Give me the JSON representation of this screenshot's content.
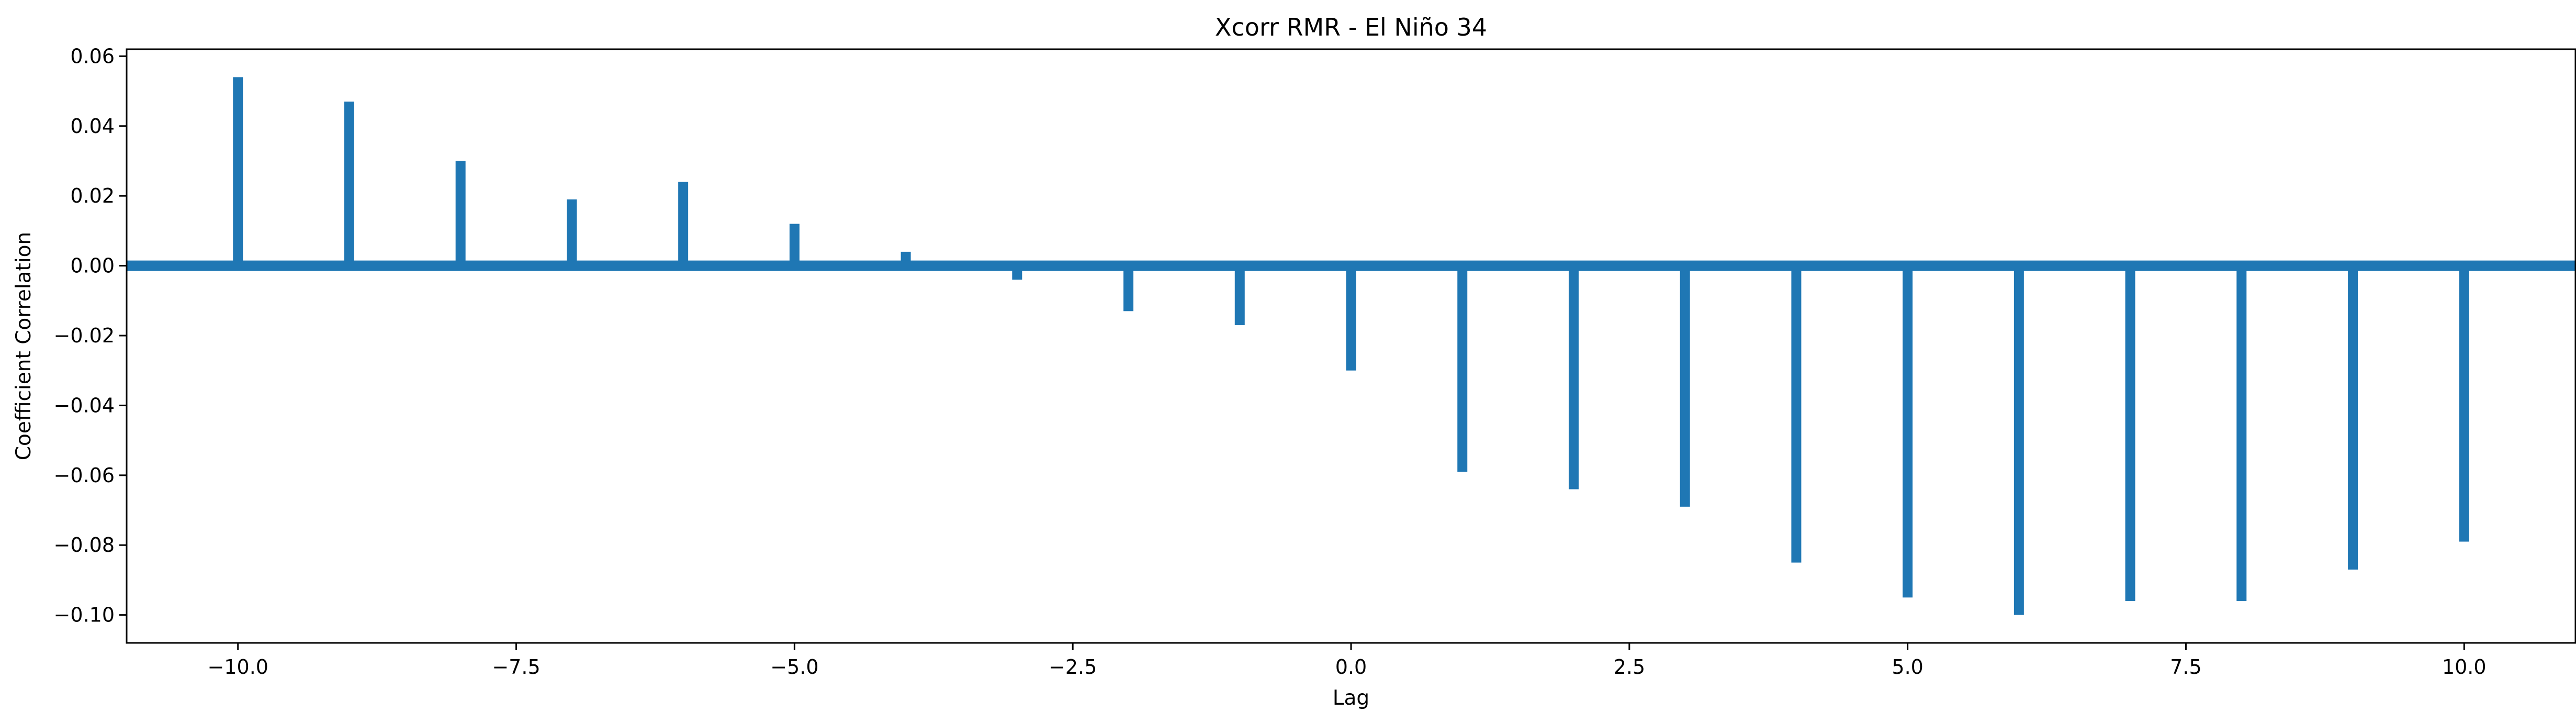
{
  "chart_data": {
    "type": "bar",
    "title": "Xcorr RMR - El Niño 34",
    "xlabel": "Lag",
    "ylabel": "Coefficient Correlation",
    "xlim": [
      -11,
      11
    ],
    "ylim": [
      -0.108,
      0.062
    ],
    "x": [
      -10,
      -9,
      -8,
      -7,
      -6,
      -5,
      -4,
      -3,
      -2,
      -1,
      0,
      1,
      2,
      3,
      4,
      5,
      6,
      7,
      8,
      9,
      10
    ],
    "values": [
      0.054,
      0.047,
      0.03,
      0.019,
      0.024,
      0.012,
      0.004,
      -0.004,
      -0.013,
      -0.017,
      -0.03,
      -0.059,
      -0.064,
      -0.069,
      -0.085,
      -0.095,
      -0.1,
      -0.096,
      -0.096,
      -0.087,
      -0.079
    ],
    "x_ticks": [
      -10.0,
      -7.5,
      -5.0,
      -2.5,
      0.0,
      2.5,
      5.0,
      7.5,
      10.0
    ],
    "x_tick_labels": [
      "−10.0",
      "−7.5",
      "−5.0",
      "−2.5",
      "0.0",
      "2.5",
      "5.0",
      "7.5",
      "10.0"
    ],
    "y_ticks": [
      0.06,
      0.04,
      0.02,
      0.0,
      -0.02,
      -0.04,
      -0.06,
      -0.08,
      -0.1
    ],
    "y_tick_labels": [
      "0.06",
      "0.04",
      "0.02",
      "0.00",
      "−0.02",
      "−0.04",
      "−0.06",
      "−0.08",
      "−0.10"
    ],
    "bar_color": "#1f77b4",
    "baseline": 0,
    "grid": false,
    "legend": "none"
  }
}
